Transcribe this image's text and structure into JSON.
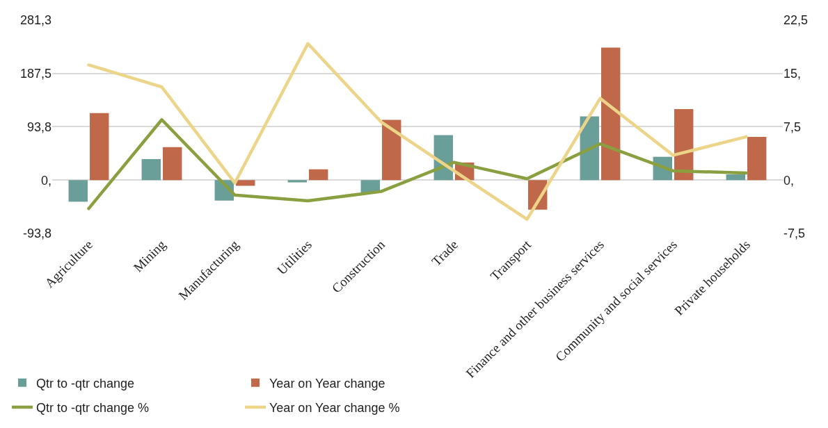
{
  "chart_data": {
    "type": "bar",
    "categories": [
      "Agriculture",
      "Mining",
      "Manufacturing",
      "Utilities",
      "Construction",
      "Trade",
      "Transport",
      "Finance and other business services",
      "Community and social services",
      "Private households"
    ],
    "series": [
      {
        "name": "Qtr to -qtr change",
        "color": "#6a9e98",
        "values": [
          -38,
          37,
          -36,
          -4,
          -22,
          79,
          0,
          112,
          41,
          10
        ]
      },
      {
        "name": "Year on Year change",
        "color": "#c0694a",
        "values": [
          118,
          58,
          -10,
          19,
          106,
          31,
          -52,
          233,
          125,
          76
        ]
      },
      {
        "name": "Qtr to -qtr change %",
        "type": "line",
        "axis": "y2",
        "color": "#8aa040",
        "values": [
          -4.0,
          8.5,
          -2.1,
          -2.9,
          -1.6,
          2.5,
          0.2,
          5.1,
          1.3,
          1.0
        ]
      },
      {
        "name": "Year on Year change %",
        "type": "line",
        "axis": "y2",
        "color": "#ecd488",
        "values": [
          16.2,
          13.1,
          -0.4,
          19.2,
          8.2,
          1.3,
          -5.5,
          11.5,
          3.5,
          6.1
        ]
      }
    ],
    "ylim": [
      -93.8,
      281.3
    ],
    "yticks": [
      {
        "value": -93.8,
        "label": "-93,8"
      },
      {
        "value": 0,
        "label": "0,"
      },
      {
        "value": 93.8,
        "label": "93,8"
      },
      {
        "value": 187.5,
        "label": "187,5"
      },
      {
        "value": 281.3,
        "label": "281,3"
      }
    ],
    "y2lim": [
      -7.5,
      22.5
    ],
    "y2ticks": [
      {
        "value": -7.5,
        "label": "-7,5"
      },
      {
        "value": 0,
        "label": "0,"
      },
      {
        "value": 7.5,
        "label": "7,5"
      },
      {
        "value": 15,
        "label": "15,"
      },
      {
        "value": 22.5,
        "label": "22,5"
      }
    ],
    "grid": "y",
    "legend": "bottom left",
    "marker": "none",
    "line_style": "solid"
  }
}
